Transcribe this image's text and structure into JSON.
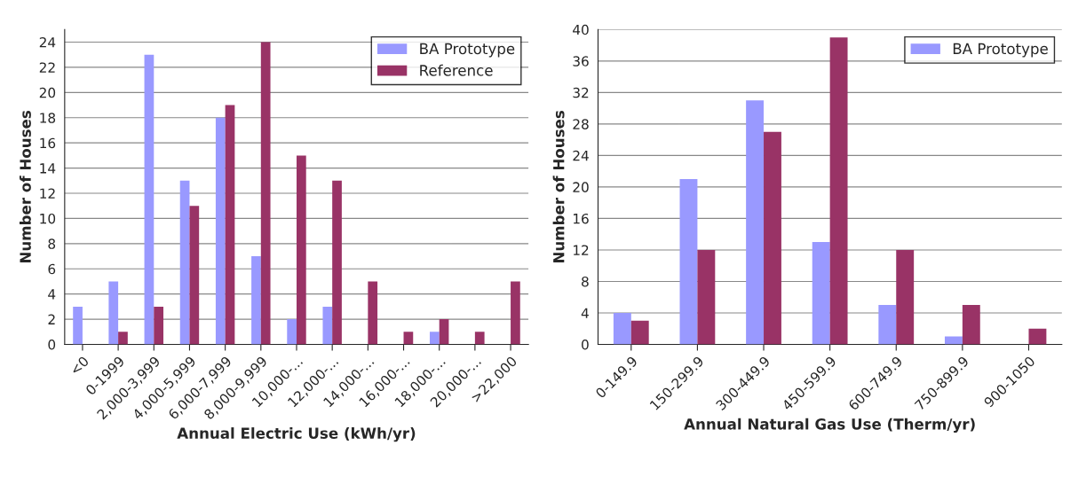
{
  "chart_data": [
    {
      "type": "bar",
      "xlabel": "Annual Electric Use (kWh/yr)",
      "ylabel": "Number of Houses",
      "categories": [
        "<0",
        "0-1999",
        "2,000-3,999",
        "4,000-5,999",
        "6,000-7,999",
        "8,000-9,999",
        "10,000-...",
        "12,000-...",
        "14,000-...",
        "16,000-...",
        "18,000-...",
        "20,000-...",
        ">22,000"
      ],
      "series": [
        {
          "name": "BA Prototype",
          "color": "#9999ff",
          "values": [
            3,
            5,
            23,
            13,
            18,
            7,
            2,
            3,
            0,
            0,
            1,
            0,
            0
          ]
        },
        {
          "name": "Reference",
          "color": "#993366",
          "values": [
            0,
            1,
            3,
            11,
            19,
            24,
            15,
            13,
            5,
            1,
            2,
            1,
            5
          ]
        }
      ],
      "ylim": [
        0,
        25
      ],
      "yticks": [
        0,
        2,
        4,
        6,
        8,
        10,
        12,
        14,
        16,
        18,
        20,
        22,
        24
      ],
      "grid": "y",
      "legend": "top right"
    },
    {
      "type": "bar",
      "xlabel": "Annual Natural Gas Use (Therm/yr)",
      "ylabel": "Number of Houses",
      "categories": [
        "0-149.9",
        "150-299.9",
        "300-449.9",
        "450-599.9",
        "600-749.9",
        "750-899.9",
        "900-1050"
      ],
      "series": [
        {
          "name": "BA Prototype",
          "color": "#9999ff",
          "values": [
            4,
            21,
            31,
            13,
            5,
            1,
            0
          ]
        },
        {
          "color": "#993366",
          "values": [
            3,
            12,
            27,
            39,
            12,
            5,
            2
          ]
        }
      ],
      "ylim": [
        0,
        40
      ],
      "yticks": [
        0,
        4,
        8,
        12,
        16,
        20,
        24,
        28,
        32,
        36,
        40
      ],
      "grid": "y",
      "legend": "top right"
    }
  ]
}
